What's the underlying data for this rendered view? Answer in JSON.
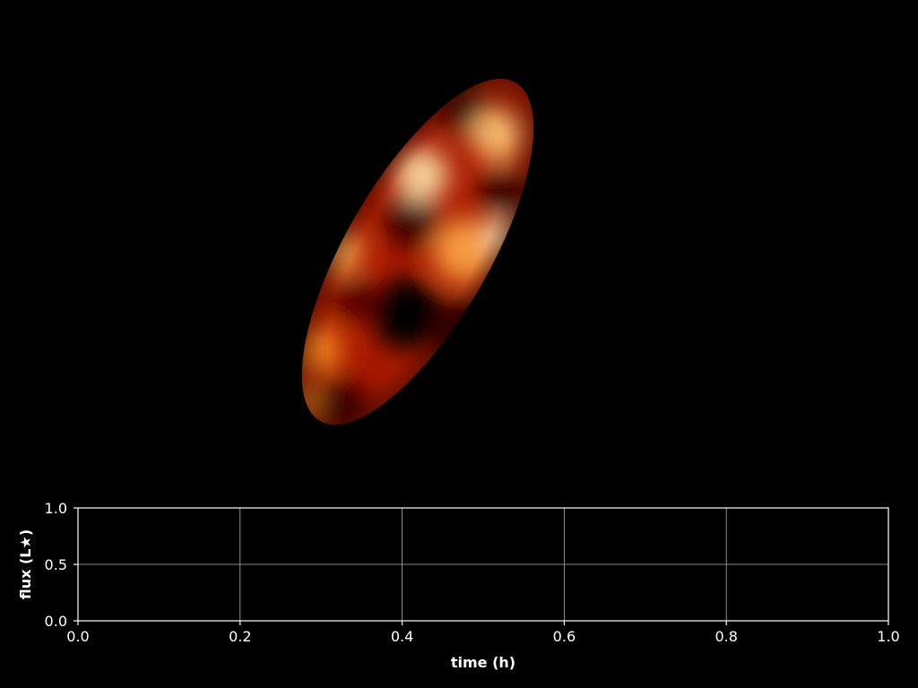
{
  "figure": {
    "background": "#000000",
    "foreground": "#ffffff",
    "grid_color": "#b0b0b0"
  },
  "chart_data": [
    {
      "type": "heatmap",
      "description_shape": "inclined-ellipse",
      "colormap": "afmhot",
      "colors": [
        "#000000",
        "#5a0000",
        "#b01a00",
        "#ff5a00",
        "#ffb040",
        "#fff4e0"
      ]
    },
    {
      "type": "line",
      "title": "",
      "xlabel": "time (h)",
      "ylabel": "flux (L★)",
      "xlim": [
        0.0,
        1.0
      ],
      "ylim": [
        0.0,
        1.0
      ],
      "x_ticks": [
        0.0,
        0.2,
        0.4,
        0.6,
        0.8,
        1.0
      ],
      "x_tick_labels": [
        "0.0",
        "0.2",
        "0.4",
        "0.6",
        "0.8",
        "1.0"
      ],
      "y_ticks": [
        0.0,
        0.5,
        1.0
      ],
      "y_tick_labels": [
        "0.0",
        "0.5",
        "1.0"
      ],
      "grid": true,
      "series": []
    }
  ]
}
